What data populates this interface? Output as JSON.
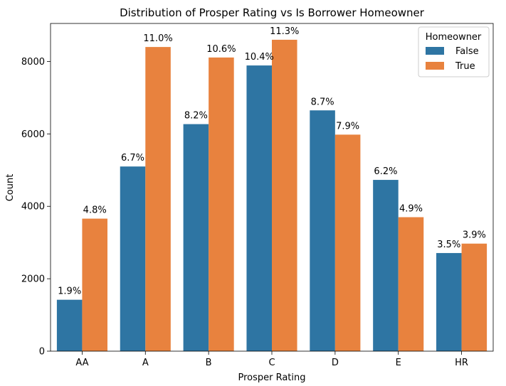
{
  "chart_data": {
    "type": "bar",
    "title": "Distribution of Prosper Rating vs Is Borrower Homeowner",
    "xlabel": "Prosper Rating",
    "ylabel": "Count",
    "ylim": [
      0,
      9050
    ],
    "yticks": [
      0,
      2000,
      4000,
      6000,
      8000
    ],
    "categories": [
      "AA",
      "A",
      "B",
      "C",
      "D",
      "E",
      "HR"
    ],
    "legend": {
      "title": "Homeowner",
      "placement": "top-right"
    },
    "series": [
      {
        "name": "False",
        "color": "#2e75a3",
        "values": [
          1420,
          5100,
          6270,
          7890,
          6650,
          4730,
          2710
        ],
        "labels": [
          "1.9%",
          "6.7%",
          "8.2%",
          "10.4%",
          "8.7%",
          "6.2%",
          "3.5%"
        ]
      },
      {
        "name": "True",
        "color": "#e8823e",
        "values": [
          3660,
          8400,
          8110,
          8600,
          5980,
          3700,
          2970
        ],
        "labels": [
          "4.8%",
          "11.0%",
          "10.6%",
          "11.3%",
          "7.9%",
          "4.9%",
          "3.9%"
        ]
      }
    ]
  }
}
